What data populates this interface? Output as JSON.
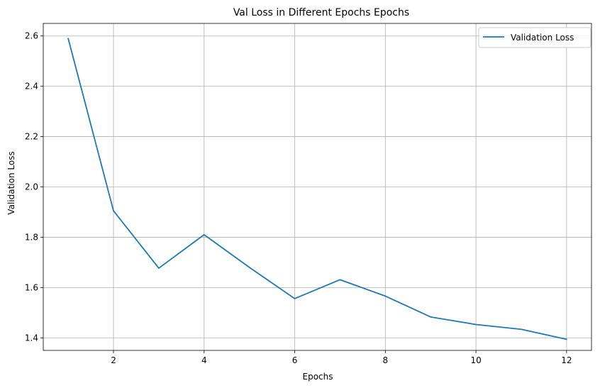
{
  "colors": {
    "series": "#1f77b4",
    "grid": "#b0b0b0",
    "axis": "#000000",
    "legend_border": "#cccccc"
  },
  "chart_data": {
    "type": "line",
    "title": "Val Loss in Different Epochs Epochs",
    "xlabel": "Epochs",
    "ylabel": "Validation Loss",
    "xlim": [
      0.45,
      12.55
    ],
    "ylim": [
      1.35,
      2.65
    ],
    "xticks": [
      2,
      4,
      6,
      8,
      10,
      12
    ],
    "yticks": [
      1.4,
      1.6,
      1.8,
      2.0,
      2.2,
      2.4,
      2.6
    ],
    "xtick_labels": [
      "2",
      "4",
      "6",
      "8",
      "10",
      "12"
    ],
    "ytick_labels": [
      "1.4",
      "1.6",
      "1.8",
      "2.0",
      "2.2",
      "2.4",
      "2.6"
    ],
    "grid": true,
    "legend_position": "top-right",
    "x": [
      1,
      2,
      3,
      4,
      5,
      6,
      7,
      8,
      9,
      10,
      11,
      12
    ],
    "series": [
      {
        "name": "Validation Loss",
        "values": [
          2.59,
          1.905,
          1.677,
          1.81,
          1.68,
          1.556,
          1.631,
          1.566,
          1.483,
          1.453,
          1.434,
          1.394
        ]
      }
    ]
  }
}
